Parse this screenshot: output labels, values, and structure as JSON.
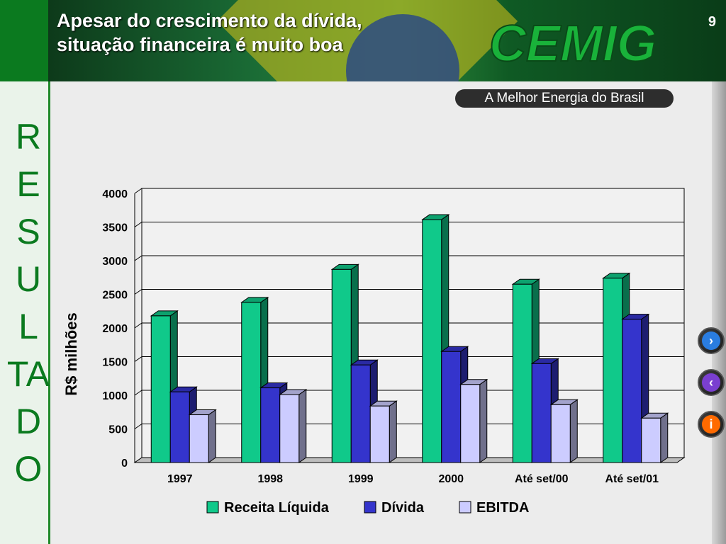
{
  "header": {
    "title_line1": "Apesar do crescimento da dívida,",
    "title_line2": "situação financeira é muito boa",
    "page_number": "9",
    "logo_text": "CEMIG",
    "tagline": "A Melhor Energia do Brasil"
  },
  "sidebar": {
    "letters": [
      "R",
      "E",
      "S",
      "U",
      "L",
      "TA",
      "D",
      "O"
    ]
  },
  "colors": {
    "Receita Líquida": "#10c98a",
    "Dívida": "#3434cc",
    "EBITDA": "#ccccff"
  },
  "chart_data": {
    "type": "bar",
    "categories": [
      "1997",
      "1998",
      "1999",
      "2000",
      "Até set/00",
      "Até set/01"
    ],
    "series": [
      {
        "name": "Receita Líquida",
        "values": [
          2180,
          2380,
          2870,
          3610,
          2650,
          2740
        ]
      },
      {
        "name": "Dívida",
        "values": [
          1050,
          1110,
          1450,
          1650,
          1470,
          2130
        ]
      },
      {
        "name": "EBITDA",
        "values": [
          710,
          1010,
          840,
          1160,
          860,
          660
        ]
      }
    ],
    "ylabel": "R$ milhões",
    "ylim": [
      0,
      4000
    ],
    "yticks": [
      0,
      500,
      1000,
      1500,
      2000,
      2500,
      3000,
      3500,
      4000
    ],
    "grid": true,
    "legend": "bottom",
    "style": "3d"
  },
  "nav": {
    "next_icon": "chevron-right-icon",
    "prev_icon": "chevron-left-icon",
    "info_icon": "info-icon"
  }
}
